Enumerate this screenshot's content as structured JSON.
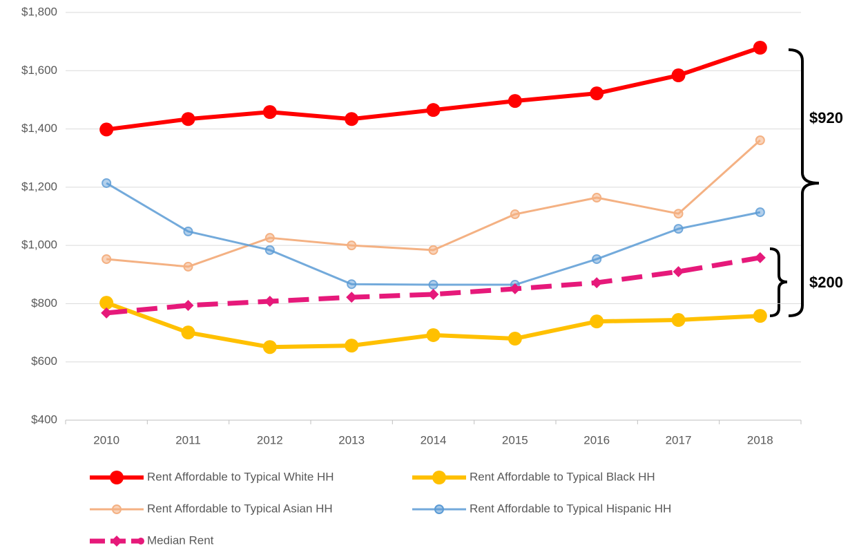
{
  "chart_data": {
    "type": "line",
    "categories": [
      "2010",
      "2011",
      "2012",
      "2013",
      "2014",
      "2015",
      "2016",
      "2017",
      "2018"
    ],
    "series": [
      {
        "name": "Rent Affordable to Typical White HH",
        "color": "#ff0000",
        "values": [
          1398,
          1434,
          1458,
          1434,
          1465,
          1496,
          1522,
          1584,
          1679
        ]
      },
      {
        "name": "Rent Affordable to Typical Black HH",
        "color": "#ffc000",
        "values": [
          803,
          701,
          651,
          656,
          692,
          680,
          739,
          744,
          758
        ]
      },
      {
        "name": "Rent Affordable to Typical Asian HH",
        "color": "#f4b183",
        "values": [
          953,
          927,
          1026,
          1000,
          984,
          1107,
          1164,
          1109,
          1361
        ]
      },
      {
        "name": "Rent Affordable to Typical Hispanic HH",
        "color": "#5b9bd5",
        "values": [
          1214,
          1048,
          984,
          867,
          865,
          865,
          953,
          1057,
          1114
        ]
      },
      {
        "name": "Median Rent",
        "color": "#e6197a",
        "values": [
          768,
          794,
          808,
          822,
          832,
          851,
          872,
          910,
          958
        ]
      }
    ],
    "ylim": [
      400,
      1800
    ],
    "yticks": [
      {
        "value": 400,
        "label": "$400"
      },
      {
        "value": 600,
        "label": "$600"
      },
      {
        "value": 800,
        "label": "$800"
      },
      {
        "value": 1000,
        "label": "$1,000"
      },
      {
        "value": 1200,
        "label": "$1,200"
      },
      {
        "value": 1400,
        "label": "$1,400"
      },
      {
        "value": 1600,
        "label": "$1,600"
      },
      {
        "value": 1800,
        "label": "$1,800"
      }
    ],
    "grid": true,
    "legend": "bottom",
    "annotations": [
      "$920",
      "$200"
    ]
  }
}
